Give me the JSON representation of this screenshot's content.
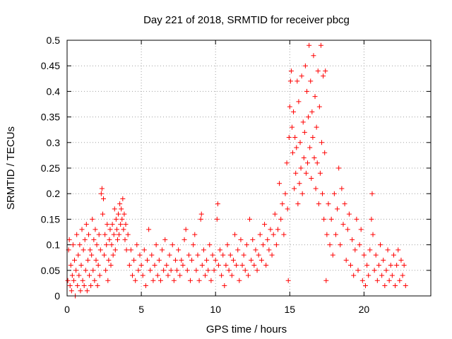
{
  "chart_data": {
    "type": "scatter",
    "title": "Day 221 of 2018, SRMTID for receiver pbcg",
    "xlabel": "GPS time / hours",
    "ylabel": "SRMTID / TECUs",
    "xlim": [
      0,
      24.5
    ],
    "ylim": [
      0,
      0.5
    ],
    "xticks": [
      0,
      5,
      10,
      15,
      20
    ],
    "yticks": [
      0,
      0.05,
      0.1,
      0.15,
      0.2,
      0.25,
      0.3,
      0.35,
      0.4,
      0.45,
      0.5
    ],
    "xtick_labels": [
      "0",
      "5",
      "10",
      "15",
      "20"
    ],
    "ytick_labels": [
      "0",
      "0.05",
      "0.1",
      "0.15",
      "0.2",
      "0.25",
      "0.3",
      "0.35",
      "0.4",
      "0.45",
      "0.5"
    ],
    "grid": true,
    "marker": "+",
    "color": "#ff0000",
    "series": [
      {
        "name": "SRMTID",
        "points": [
          [
            0.05,
            0.03
          ],
          [
            0.1,
            0.09
          ],
          [
            0.15,
            0.11
          ],
          [
            0.2,
            0.02
          ],
          [
            0.25,
            0.06
          ],
          [
            0.3,
            0.01
          ],
          [
            0.35,
            0.04
          ],
          [
            0.4,
            0.1
          ],
          [
            0.45,
            0.03
          ],
          [
            0.5,
            0.07
          ],
          [
            0.55,
            0.0
          ],
          [
            0.6,
            0.05
          ],
          [
            0.65,
            0.12
          ],
          [
            0.7,
            0.02
          ],
          [
            0.75,
            0.08
          ],
          [
            0.8,
            0.04
          ],
          [
            0.85,
            0.1
          ],
          [
            0.9,
            0.01
          ],
          [
            0.95,
            0.06
          ],
          [
            1.0,
            0.13
          ],
          [
            1.05,
            0.03
          ],
          [
            1.1,
            0.09
          ],
          [
            1.15,
            0.02
          ],
          [
            1.2,
            0.11
          ],
          [
            1.25,
            0.05
          ],
          [
            1.3,
            0.14
          ],
          [
            1.35,
            0.01
          ],
          [
            1.4,
            0.07
          ],
          [
            1.45,
            0.12
          ],
          [
            1.5,
            0.04
          ],
          [
            1.55,
            0.09
          ],
          [
            1.6,
            0.02
          ],
          [
            1.65,
            0.08
          ],
          [
            1.7,
            0.15
          ],
          [
            1.75,
            0.05
          ],
          [
            1.8,
            0.11
          ],
          [
            1.85,
            0.03
          ],
          [
            1.9,
            0.13
          ],
          [
            1.95,
            0.07
          ],
          [
            2.0,
            0.1
          ],
          [
            2.05,
            0.02
          ],
          [
            2.1,
            0.06
          ],
          [
            2.15,
            0.12
          ],
          [
            2.2,
            0.04
          ],
          [
            2.25,
            0.09
          ],
          [
            2.3,
            0.2
          ],
          [
            2.35,
            0.21
          ],
          [
            2.4,
            0.16
          ],
          [
            2.45,
            0.19
          ],
          [
            2.5,
            0.08
          ],
          [
            2.55,
            0.12
          ],
          [
            2.6,
            0.05
          ],
          [
            2.65,
            0.1
          ],
          [
            2.7,
            0.14
          ],
          [
            2.75,
            0.03
          ],
          [
            2.8,
            0.07
          ],
          [
            2.85,
            0.11
          ],
          [
            2.9,
            0.13
          ],
          [
            2.95,
            0.06
          ],
          [
            3.0,
            0.1
          ],
          [
            3.05,
            0.14
          ],
          [
            3.1,
            0.08
          ],
          [
            3.15,
            0.12
          ],
          [
            3.2,
            0.17
          ],
          [
            3.25,
            0.09
          ],
          [
            3.3,
            0.15
          ],
          [
            3.35,
            0.13
          ],
          [
            3.4,
            0.11
          ],
          [
            3.45,
            0.16
          ],
          [
            3.5,
            0.12
          ],
          [
            3.55,
            0.18
          ],
          [
            3.6,
            0.14
          ],
          [
            3.65,
            0.17
          ],
          [
            3.7,
            0.15
          ],
          [
            3.75,
            0.19
          ],
          [
            3.8,
            0.13
          ],
          [
            3.85,
            0.16
          ],
          [
            3.9,
            0.11
          ],
          [
            3.95,
            0.14
          ],
          [
            4.0,
            0.09
          ],
          [
            4.1,
            0.12
          ],
          [
            4.2,
            0.06
          ],
          [
            4.3,
            0.09
          ],
          [
            4.4,
            0.04
          ],
          [
            4.5,
            0.07
          ],
          [
            4.6,
            0.03
          ],
          [
            4.7,
            0.1
          ],
          [
            4.8,
            0.05
          ],
          [
            4.9,
            0.08
          ],
          [
            5.0,
            0.06
          ],
          [
            5.1,
            0.04
          ],
          [
            5.2,
            0.09
          ],
          [
            5.3,
            0.02
          ],
          [
            5.4,
            0.07
          ],
          [
            5.5,
            0.13
          ],
          [
            5.6,
            0.05
          ],
          [
            5.7,
            0.08
          ],
          [
            5.8,
            0.03
          ],
          [
            5.9,
            0.06
          ],
          [
            6.0,
            0.1
          ],
          [
            6.1,
            0.04
          ],
          [
            6.2,
            0.07
          ],
          [
            6.3,
            0.03
          ],
          [
            6.4,
            0.09
          ],
          [
            6.5,
            0.05
          ],
          [
            6.6,
            0.11
          ],
          [
            6.7,
            0.06
          ],
          [
            6.8,
            0.04
          ],
          [
            6.9,
            0.08
          ],
          [
            7.0,
            0.05
          ],
          [
            7.1,
            0.1
          ],
          [
            7.2,
            0.03
          ],
          [
            7.3,
            0.07
          ],
          [
            7.4,
            0.05
          ],
          [
            7.5,
            0.09
          ],
          [
            7.6,
            0.04
          ],
          [
            7.7,
            0.07
          ],
          [
            7.8,
            0.06
          ],
          [
            7.9,
            0.11
          ],
          [
            8.0,
            0.13
          ],
          [
            8.1,
            0.05
          ],
          [
            8.2,
            0.08
          ],
          [
            8.3,
            0.03
          ],
          [
            8.4,
            0.07
          ],
          [
            8.5,
            0.1
          ],
          [
            8.6,
            0.12
          ],
          [
            8.7,
            0.05
          ],
          [
            8.8,
            0.08
          ],
          [
            8.9,
            0.03
          ],
          [
            9.0,
            0.15
          ],
          [
            9.05,
            0.16
          ],
          [
            9.1,
            0.06
          ],
          [
            9.2,
            0.09
          ],
          [
            9.3,
            0.04
          ],
          [
            9.4,
            0.07
          ],
          [
            9.5,
            0.05
          ],
          [
            9.6,
            0.1
          ],
          [
            9.7,
            0.03
          ],
          [
            9.8,
            0.08
          ],
          [
            9.9,
            0.05
          ],
          [
            10.0,
            0.07
          ],
          [
            10.1,
            0.15
          ],
          [
            10.15,
            0.18
          ],
          [
            10.2,
            0.06
          ],
          [
            10.3,
            0.09
          ],
          [
            10.4,
            0.04
          ],
          [
            10.5,
            0.08
          ],
          [
            10.6,
            0.02
          ],
          [
            10.7,
            0.06
          ],
          [
            10.8,
            0.1
          ],
          [
            10.9,
            0.05
          ],
          [
            11.0,
            0.08
          ],
          [
            11.1,
            0.04
          ],
          [
            11.2,
            0.07
          ],
          [
            11.3,
            0.12
          ],
          [
            11.4,
            0.06
          ],
          [
            11.5,
            0.09
          ],
          [
            11.6,
            0.03
          ],
          [
            11.7,
            0.11
          ],
          [
            11.8,
            0.06
          ],
          [
            11.9,
            0.08
          ],
          [
            12.0,
            0.05
          ],
          [
            12.1,
            0.1
          ],
          [
            12.2,
            0.04
          ],
          [
            12.3,
            0.15
          ],
          [
            12.4,
            0.07
          ],
          [
            12.5,
            0.11
          ],
          [
            12.6,
            0.06
          ],
          [
            12.7,
            0.09
          ],
          [
            12.8,
            0.05
          ],
          [
            12.9,
            0.08
          ],
          [
            13.0,
            0.12
          ],
          [
            13.1,
            0.07
          ],
          [
            13.2,
            0.1
          ],
          [
            13.3,
            0.14
          ],
          [
            13.4,
            0.06
          ],
          [
            13.5,
            0.11
          ],
          [
            13.6,
            0.09
          ],
          [
            13.7,
            0.13
          ],
          [
            13.8,
            0.08
          ],
          [
            13.9,
            0.12
          ],
          [
            14.0,
            0.16
          ],
          [
            14.1,
            0.1
          ],
          [
            14.2,
            0.13
          ],
          [
            14.3,
            0.22
          ],
          [
            14.4,
            0.15
          ],
          [
            14.5,
            0.18
          ],
          [
            14.6,
            0.12
          ],
          [
            14.7,
            0.2
          ],
          [
            14.8,
            0.26
          ],
          [
            14.85,
            0.17
          ],
          [
            14.9,
            0.03
          ],
          [
            14.95,
            0.31
          ],
          [
            15.0,
            0.37
          ],
          [
            15.05,
            0.42
          ],
          [
            15.1,
            0.44
          ],
          [
            15.15,
            0.33
          ],
          [
            15.2,
            0.28
          ],
          [
            15.25,
            0.36
          ],
          [
            15.3,
            0.21
          ],
          [
            15.35,
            0.31
          ],
          [
            15.4,
            0.24
          ],
          [
            15.45,
            0.29
          ],
          [
            15.5,
            0.42
          ],
          [
            15.55,
            0.18
          ],
          [
            15.6,
            0.38
          ],
          [
            15.65,
            0.22
          ],
          [
            15.7,
            0.3
          ],
          [
            15.75,
            0.25
          ],
          [
            15.8,
            0.43
          ],
          [
            15.85,
            0.2
          ],
          [
            15.9,
            0.34
          ],
          [
            15.95,
            0.27
          ],
          [
            16.0,
            0.32
          ],
          [
            16.05,
            0.45
          ],
          [
            16.1,
            0.24
          ],
          [
            16.15,
            0.4
          ],
          [
            16.2,
            0.26
          ],
          [
            16.25,
            0.35
          ],
          [
            16.3,
            0.49
          ],
          [
            16.35,
            0.29
          ],
          [
            16.4,
            0.42
          ],
          [
            16.45,
            0.23
          ],
          [
            16.5,
            0.36
          ],
          [
            16.55,
            0.31
          ],
          [
            16.6,
            0.47
          ],
          [
            16.65,
            0.27
          ],
          [
            16.7,
            0.39
          ],
          [
            16.75,
            0.21
          ],
          [
            16.8,
            0.33
          ],
          [
            16.85,
            0.26
          ],
          [
            16.9,
            0.44
          ],
          [
            16.95,
            0.18
          ],
          [
            17.0,
            0.37
          ],
          [
            17.05,
            0.24
          ],
          [
            17.1,
            0.49
          ],
          [
            17.15,
            0.3
          ],
          [
            17.2,
            0.2
          ],
          [
            17.25,
            0.43
          ],
          [
            17.3,
            0.15
          ],
          [
            17.35,
            0.28
          ],
          [
            17.4,
            0.44
          ],
          [
            17.45,
            0.03
          ],
          [
            17.5,
            0.12
          ],
          [
            17.6,
            0.18
          ],
          [
            17.7,
            0.1
          ],
          [
            17.8,
            0.15
          ],
          [
            17.9,
            0.08
          ],
          [
            18.0,
            0.2
          ],
          [
            18.1,
            0.12
          ],
          [
            18.2,
            0.17
          ],
          [
            18.3,
            0.25
          ],
          [
            18.4,
            0.1
          ],
          [
            18.5,
            0.21
          ],
          [
            18.6,
            0.14
          ],
          [
            18.7,
            0.18
          ],
          [
            18.8,
            0.07
          ],
          [
            18.9,
            0.13
          ],
          [
            19.0,
            0.16
          ],
          [
            19.1,
            0.06
          ],
          [
            19.2,
            0.11
          ],
          [
            19.3,
            0.04
          ],
          [
            19.4,
            0.09
          ],
          [
            19.5,
            0.15
          ],
          [
            19.6,
            0.05
          ],
          [
            19.7,
            0.1
          ],
          [
            19.8,
            0.13
          ],
          [
            19.9,
            0.03
          ],
          [
            20.0,
            0.08
          ],
          [
            20.1,
            0.02
          ],
          [
            20.2,
            0.06
          ],
          [
            20.3,
            0.04
          ],
          [
            20.4,
            0.09
          ],
          [
            20.5,
            0.15
          ],
          [
            20.55,
            0.2
          ],
          [
            20.6,
            0.12
          ],
          [
            20.7,
            0.05
          ],
          [
            20.8,
            0.08
          ],
          [
            20.9,
            0.03
          ],
          [
            21.0,
            0.06
          ],
          [
            21.1,
            0.1
          ],
          [
            21.2,
            0.04
          ],
          [
            21.3,
            0.07
          ],
          [
            21.4,
            0.02
          ],
          [
            21.5,
            0.05
          ],
          [
            21.6,
            0.09
          ],
          [
            21.7,
            0.03
          ],
          [
            21.8,
            0.06
          ],
          [
            21.9,
            0.04
          ],
          [
            22.0,
            0.08
          ],
          [
            22.1,
            0.02
          ],
          [
            22.2,
            0.06
          ],
          [
            22.3,
            0.09
          ],
          [
            22.4,
            0.03
          ],
          [
            22.5,
            0.07
          ],
          [
            22.6,
            0.04
          ],
          [
            22.7,
            0.06
          ],
          [
            22.8,
            0.02
          ]
        ]
      }
    ]
  }
}
